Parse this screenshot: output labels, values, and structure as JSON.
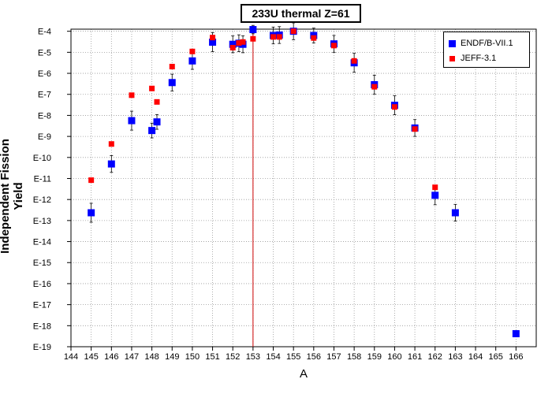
{
  "chart_data": {
    "type": "scatter",
    "title": "233U thermal Z=61",
    "xlabel": "A",
    "ylabel": "Independent Fission Yield",
    "xlim": [
      144,
      167
    ],
    "ylim_exponent": [
      -19,
      -3.9
    ],
    "y_scale": "log",
    "grid": true,
    "legend_position": "top-right",
    "x_ticks": [
      "144",
      "145",
      "146",
      "147",
      "148",
      "149",
      "150",
      "151",
      "152",
      "153",
      "154",
      "155",
      "156",
      "157",
      "158",
      "159",
      "160",
      "161",
      "162",
      "163",
      "164",
      "165",
      "166"
    ],
    "y_ticks": [
      "E-4",
      "E-5",
      "E-6",
      "E-7",
      "E-8",
      "E-9",
      "E-10",
      "E-11",
      "E-12",
      "E-13",
      "E-14",
      "E-15",
      "E-16",
      "E-17",
      "E-18",
      "E-19"
    ],
    "vertical_line": {
      "x": 153,
      "color": "#cc0000"
    },
    "series": [
      {
        "name": "ENDF/B-VII.1",
        "color": "#0000ff",
        "marker": "square",
        "points": [
          {
            "x": 145,
            "y": "2.4e-13",
            "log10": -12.63,
            "err": 0.45
          },
          {
            "x": 146,
            "y": "4.9e-11",
            "log10": -10.31,
            "err": 0.4
          },
          {
            "x": 147,
            "y": "5.6e-9",
            "log10": -8.25,
            "err": 0.45
          },
          {
            "x": 148,
            "y": "1.9e-9",
            "log10": -8.72,
            "err": 0.35
          },
          {
            "x": 148.25,
            "y": "4.9e-9",
            "log10": -8.31,
            "err": 0.35
          },
          {
            "x": 149,
            "y": "3.6e-7",
            "log10": -6.44,
            "err": 0.4
          },
          {
            "x": 150,
            "y": "3.9e-6",
            "log10": -5.41,
            "err": 0.4
          },
          {
            "x": 151,
            "y": "3.0e-5",
            "log10": -4.52,
            "err": 0.45
          },
          {
            "x": 152,
            "y": "2.4e-5",
            "log10": -4.62,
            "err": 0.4
          },
          {
            "x": 152.3,
            "y": "2.7e-5",
            "log10": -4.57,
            "err": 0.4
          },
          {
            "x": 152.5,
            "y": "2.4e-5",
            "log10": -4.62,
            "err": 0.4
          },
          {
            "x": 153,
            "y": "1.2e-4",
            "log10": -3.92,
            "err": 0.2
          },
          {
            "x": 154,
            "y": "6.3e-5",
            "log10": -4.2,
            "err": 0.4
          },
          {
            "x": 154.3,
            "y": "6.6e-5",
            "log10": -4.18,
            "err": 0.4
          },
          {
            "x": 155,
            "y": "1.0e-4",
            "log10": -4.0,
            "err": 0.4
          },
          {
            "x": 156,
            "y": "6.3e-5",
            "log10": -4.2,
            "err": 0.35
          },
          {
            "x": 157,
            "y": "2.5e-5",
            "log10": -4.6,
            "err": 0.4
          },
          {
            "x": 158,
            "y": "3.2e-6",
            "log10": -5.5,
            "err": 0.45
          },
          {
            "x": 159,
            "y": "2.9e-7",
            "log10": -6.54,
            "err": 0.45
          },
          {
            "x": 160,
            "y": "3.0e-8",
            "log10": -7.52,
            "err": 0.45
          },
          {
            "x": 161,
            "y": "2.5e-9",
            "log10": -8.6,
            "err": 0.4
          },
          {
            "x": 162,
            "y": "1.6e-12",
            "log10": -11.8,
            "err": 0.45
          },
          {
            "x": 163,
            "y": "2.4e-13",
            "log10": -12.63,
            "err": 0.4
          },
          {
            "x": 166,
            "y": "4.2e-19",
            "log10": -18.38,
            "err": 0.0
          }
        ]
      },
      {
        "name": "JEFF-3.1",
        "color": "#ff0000",
        "marker": "square",
        "points": [
          {
            "x": 145,
            "y": "8.3e-12",
            "log10": -11.08
          },
          {
            "x": 146,
            "y": "4.4e-10",
            "log10": -9.36
          },
          {
            "x": 147,
            "y": "9.1e-8",
            "log10": -7.04
          },
          {
            "x": 148,
            "y": "1.9e-7",
            "log10": -6.72
          },
          {
            "x": 148.25,
            "y": "4.4e-8",
            "log10": -7.36
          },
          {
            "x": 149,
            "y": "2.1e-6",
            "log10": -5.68
          },
          {
            "x": 150,
            "y": "1.1e-5",
            "log10": -4.96
          },
          {
            "x": 151,
            "y": "5.0e-5",
            "log10": -4.3
          },
          {
            "x": 152,
            "y": "1.7e-5",
            "log10": -4.78
          },
          {
            "x": 152.3,
            "y": "2.8e-5",
            "log10": -4.56
          },
          {
            "x": 152.5,
            "y": "3.1e-5",
            "log10": -4.51
          },
          {
            "x": 153,
            "y": "4.4e-5",
            "log10": -4.36
          },
          {
            "x": 154,
            "y": "5.4e-5",
            "log10": -4.27
          },
          {
            "x": 154.3,
            "y": "5.4e-5",
            "log10": -4.27
          },
          {
            "x": 155,
            "y": "1.0e-4",
            "log10": -4.0
          },
          {
            "x": 156,
            "y": "4.8e-5",
            "log10": -4.32
          },
          {
            "x": 157,
            "y": "2.1e-5",
            "log10": -4.68
          },
          {
            "x": 158,
            "y": "3.9e-6",
            "log10": -5.41
          },
          {
            "x": 159,
            "y": "2.3e-7",
            "log10": -6.64
          },
          {
            "x": 160,
            "y": "2.5e-8",
            "log10": -7.6
          },
          {
            "x": 161,
            "y": "2.2e-9",
            "log10": -8.65
          },
          {
            "x": 162,
            "y": "3.8e-12",
            "log10": -11.42
          }
        ]
      }
    ]
  }
}
